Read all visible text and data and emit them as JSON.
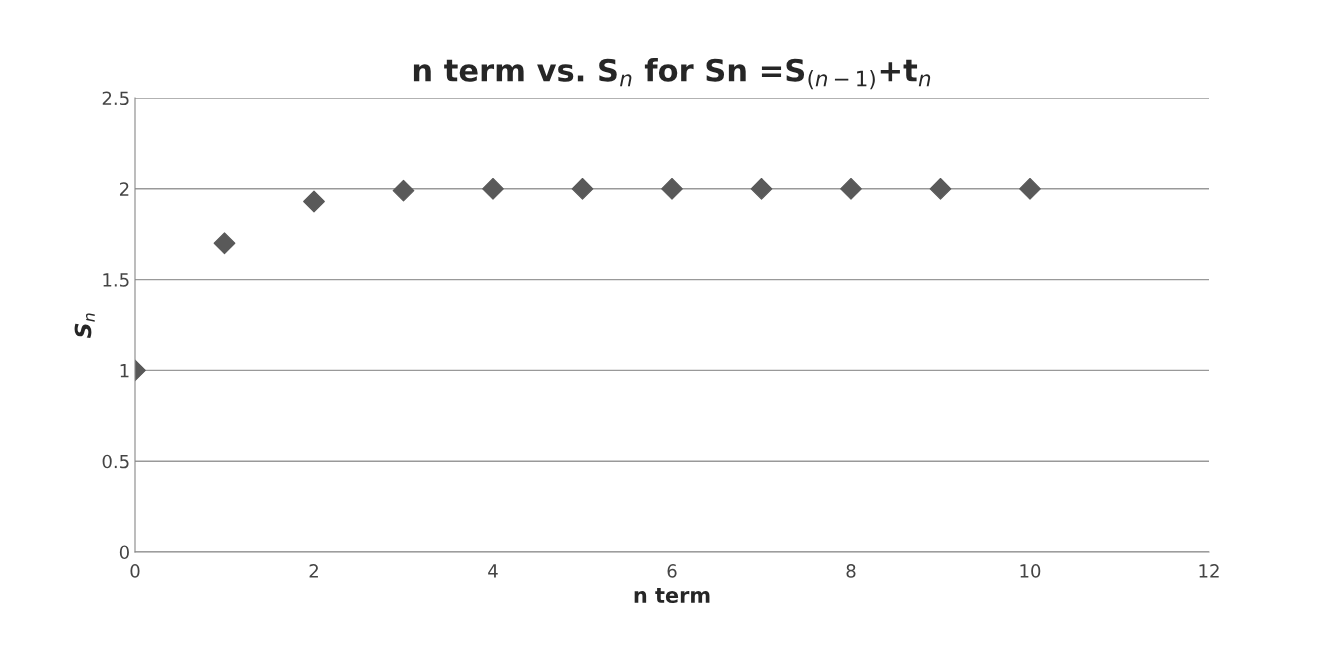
{
  "chart_data": {
    "type": "scatter",
    "title": "n term vs. S$_{n}$ for Sn =S$_{(n−1)}$+t$_{n}$",
    "xlabel": "n term",
    "ylabel": "S$_{n}$",
    "x": [
      0,
      1,
      2,
      3,
      4,
      5,
      6,
      7,
      8,
      9,
      10
    ],
    "series": [
      {
        "color": "#595959",
        "values": [
          1,
          1.7,
          1.93,
          1.99,
          2,
          2,
          2,
          2,
          2,
          2,
          2
        ]
      }
    ],
    "xlim": [
      0,
      12
    ],
    "xticks": [
      0,
      2,
      4,
      6,
      8,
      10,
      12
    ],
    "ylim": [
      0,
      2.5
    ],
    "yticks": [
      0,
      0.5,
      1,
      1.5,
      2,
      2.5
    ],
    "grid": "y",
    "marker": "diamond",
    "legend": false
  }
}
